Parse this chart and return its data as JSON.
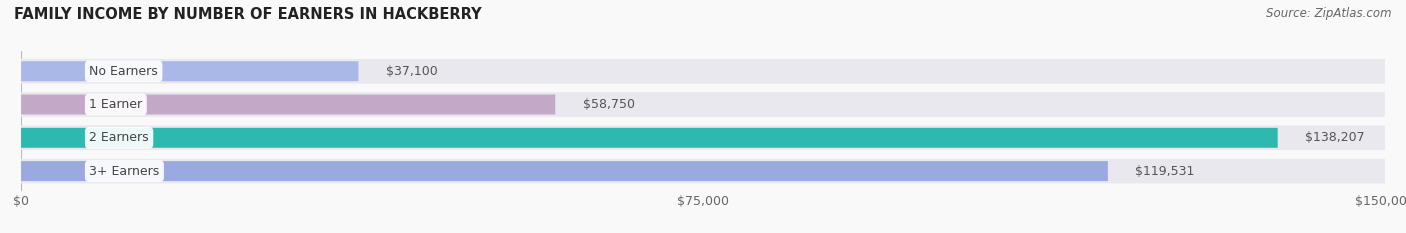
{
  "title": "FAMILY INCOME BY NUMBER OF EARNERS IN HACKBERRY",
  "source": "Source: ZipAtlas.com",
  "categories": [
    "No Earners",
    "1 Earner",
    "2 Earners",
    "3+ Earners"
  ],
  "values": [
    37100,
    58750,
    138207,
    119531
  ],
  "bar_colors": [
    "#aab8e8",
    "#c4a8c8",
    "#2db8b0",
    "#9aaae0"
  ],
  "bar_bg_color": "#e8e8ee",
  "max_value": 150000,
  "x_ticks": [
    0,
    75000,
    150000
  ],
  "x_tick_labels": [
    "$0",
    "$75,000",
    "$150,000"
  ],
  "value_labels": [
    "$37,100",
    "$58,750",
    "$138,207",
    "$119,531"
  ],
  "background_color": "#f9f9f9",
  "title_fontsize": 10.5,
  "source_fontsize": 8.5,
  "label_fontsize": 9,
  "tick_fontsize": 9
}
